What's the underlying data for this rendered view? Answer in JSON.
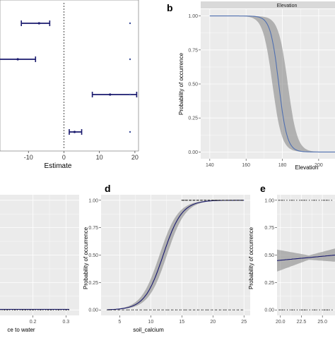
{
  "colors": {
    "panel_bg": "#ebebeb",
    "grid": "#ffffff",
    "strip_bg": "#d9d9d9",
    "curve": "#4f6fb0",
    "ribbon": "#7f7f7f",
    "forest": "#1a1a6e",
    "points": "#333333"
  },
  "chart_data": [
    {
      "id": "a",
      "type": "scatter",
      "variant": "forest-plot",
      "xlabel": "Estimate",
      "ticks_x": [
        "-10",
        "0",
        "10",
        "20"
      ],
      "tick_values_x": [
        -10,
        0,
        10,
        20
      ],
      "xlim": [
        -20,
        25
      ],
      "reference_line_x": 0,
      "rows": [
        {
          "est": -7,
          "lo": -12,
          "hi": -4
        },
        {
          "est": -13,
          "lo": -22,
          "hi": -8
        },
        {
          "est": 13,
          "lo": 8,
          "hi": 20.5
        },
        {
          "est": 3,
          "lo": 1.5,
          "hi": 5
        }
      ],
      "right_markers": true
    },
    {
      "id": "b",
      "label": "b",
      "type": "line",
      "strip": "Elevation",
      "xlabel": "Elevation",
      "ylabel": "Probability of occurrence",
      "ticks_x": [
        "140",
        "160",
        "180",
        "200"
      ],
      "tick_values_x": [
        140,
        160,
        180,
        200
      ],
      "ticks_y": [
        "0.00",
        "0.25",
        "0.50",
        "0.75",
        "1.00"
      ],
      "tick_values_y": [
        0,
        0.25,
        0.5,
        0.75,
        1
      ],
      "xlim": [
        135,
        209
      ],
      "ylim": [
        -0.05,
        1.05
      ],
      "curve": {
        "midpoint": 178,
        "scale": 2.3,
        "x_start": 140,
        "x_end": 209
      },
      "ribbon": {
        "lower_midpoint": 174.5,
        "lower_scale": 2.6,
        "upper_midpoint": 183,
        "upper_scale": 2.6
      }
    },
    {
      "id": "c",
      "type": "scatter",
      "xlabel": "ce to water",
      "ticks_x": [
        "0.2",
        "0.3"
      ],
      "tick_values_x": [
        0.2,
        0.3
      ],
      "xlim": [
        0.1,
        0.34
      ],
      "ylim": [
        -0.05,
        1.05
      ]
    },
    {
      "id": "d",
      "label": "d",
      "type": "line",
      "xlabel": "soil_calcium",
      "ylabel": "Probability of occurrence",
      "ticks_x": [
        "5",
        "10",
        "15",
        "20",
        "25"
      ],
      "tick_values_x": [
        5,
        10,
        15,
        20,
        25
      ],
      "ticks_y": [
        "0.00",
        "0.25",
        "0.50",
        "0.75",
        "1.00"
      ],
      "tick_values_y": [
        0,
        0.25,
        0.5,
        0.75,
        1
      ],
      "xlim": [
        2,
        26
      ],
      "ylim": [
        -0.05,
        1.05
      ],
      "curve": {
        "midpoint": 12,
        "scale": 1.5,
        "x_start": 3,
        "x_end": 25
      },
      "ribbon": {
        "lower_midpoint": 12.6,
        "lower_scale": 1.5,
        "upper_midpoint": 11.4,
        "upper_scale": 1.5
      },
      "rug_top": [
        15,
        25
      ],
      "rug_bottom": [
        3,
        25
      ]
    },
    {
      "id": "e",
      "label": "e",
      "type": "line",
      "ylabel": "Probability of occurrence",
      "ticks_x": [
        "20.0",
        "22.5",
        "25.0"
      ],
      "tick_values_x": [
        20,
        22.5,
        25
      ],
      "ticks_y": [
        "0.00",
        "0.25",
        "0.50",
        "0.75",
        "1.00"
      ],
      "tick_values_y": [
        0,
        0.25,
        0.5,
        0.75,
        1
      ],
      "xlim": [
        19.6,
        26.5
      ],
      "ylim": [
        -0.05,
        1.05
      ],
      "linear": {
        "y_start": 0.45,
        "y_end": 0.5
      },
      "band": {
        "start_half_width": 0.1,
        "mid_half_width": 0.02,
        "end_half_width": 0.06
      }
    }
  ]
}
